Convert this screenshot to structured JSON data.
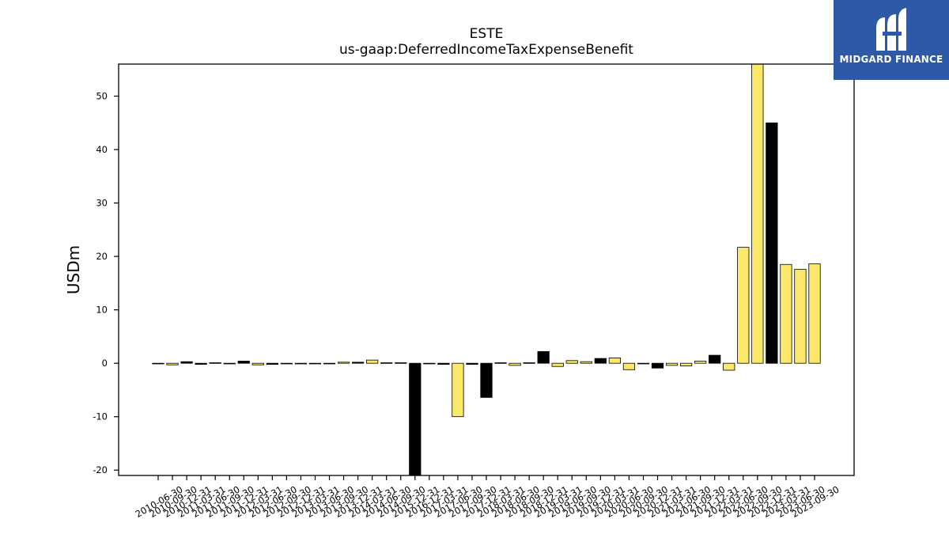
{
  "brand": {
    "name": "MIDGARD FINANCE",
    "bg_color": "#2d59a7",
    "icon": "midgard-logo-icon"
  },
  "chart_data": {
    "type": "bar",
    "title": "ESTE",
    "subtitle": "us-gaap:DeferredIncomeTaxExpenseBenefit",
    "ylabel": "USDm",
    "xlabel": "",
    "ylim": [
      -21,
      56
    ],
    "yticks": [
      -20,
      -10,
      0,
      10,
      20,
      30,
      40,
      50
    ],
    "grid": false,
    "colors": {
      "yellow": "#fbe86a",
      "black": "#000000"
    },
    "categories": [
      "2010-06-30",
      "2010-09-30",
      "2010-12-31",
      "2011-03-31",
      "2011-06-30",
      "2011-09-30",
      "2011-12-31",
      "2012-03-31",
      "2012-06-30",
      "2012-09-30",
      "2012-12-31",
      "2013-03-31",
      "2013-06-30",
      "2013-09-30",
      "2013-12-31",
      "2014-03-31",
      "2014-06-30",
      "2014-09-30",
      "2015-12-31",
      "2016-12-31",
      "2017-03-31",
      "2017-06-30",
      "2017-09-30",
      "2017-12-31",
      "2018-03-31",
      "2018-06-30",
      "2018-09-30",
      "2018-12-31",
      "2019-03-31",
      "2019-06-30",
      "2019-09-30",
      "2019-12-31",
      "2020-03-31",
      "2020-06-30",
      "2020-09-30",
      "2020-12-31",
      "2021-03-31",
      "2021-06-30",
      "2021-09-30",
      "2021-12-31",
      "2022-03-31",
      "2022-06-30",
      "2022-09-30",
      "2022-12-31",
      "2023-03-31",
      "2023-06-30",
      "2023-09-30"
    ],
    "values": [
      -0.1,
      -0.3,
      0.3,
      -0.2,
      0.1,
      -0.1,
      0.4,
      -0.3,
      -0.2,
      -0.1,
      -0.1,
      -0.1,
      -0.1,
      0.2,
      0.2,
      0.6,
      0.1,
      0.1,
      -21.0,
      -0.1,
      -0.2,
      -10.0,
      -0.2,
      -6.4,
      0.1,
      -0.4,
      0.1,
      2.2,
      -0.6,
      0.5,
      0.3,
      0.9,
      1.0,
      -1.2,
      -0.1,
      -0.9,
      -0.4,
      -0.5,
      0.4,
      1.5,
      -1.3,
      21.7,
      56.0,
      45.0,
      18.5,
      17.6,
      18.6
    ],
    "bar_colors": [
      "black",
      "yellow",
      "black",
      "black",
      "black",
      "black",
      "black",
      "yellow",
      "black",
      "black",
      "black",
      "black",
      "black",
      "yellow",
      "black",
      "yellow",
      "black",
      "black",
      "black",
      "black",
      "black",
      "yellow",
      "black",
      "black",
      "black",
      "yellow",
      "black",
      "black",
      "yellow",
      "yellow",
      "yellow",
      "black",
      "yellow",
      "yellow",
      "black",
      "black",
      "yellow",
      "yellow",
      "yellow",
      "black",
      "yellow",
      "yellow",
      "yellow",
      "black",
      "yellow",
      "yellow",
      "yellow"
    ]
  }
}
